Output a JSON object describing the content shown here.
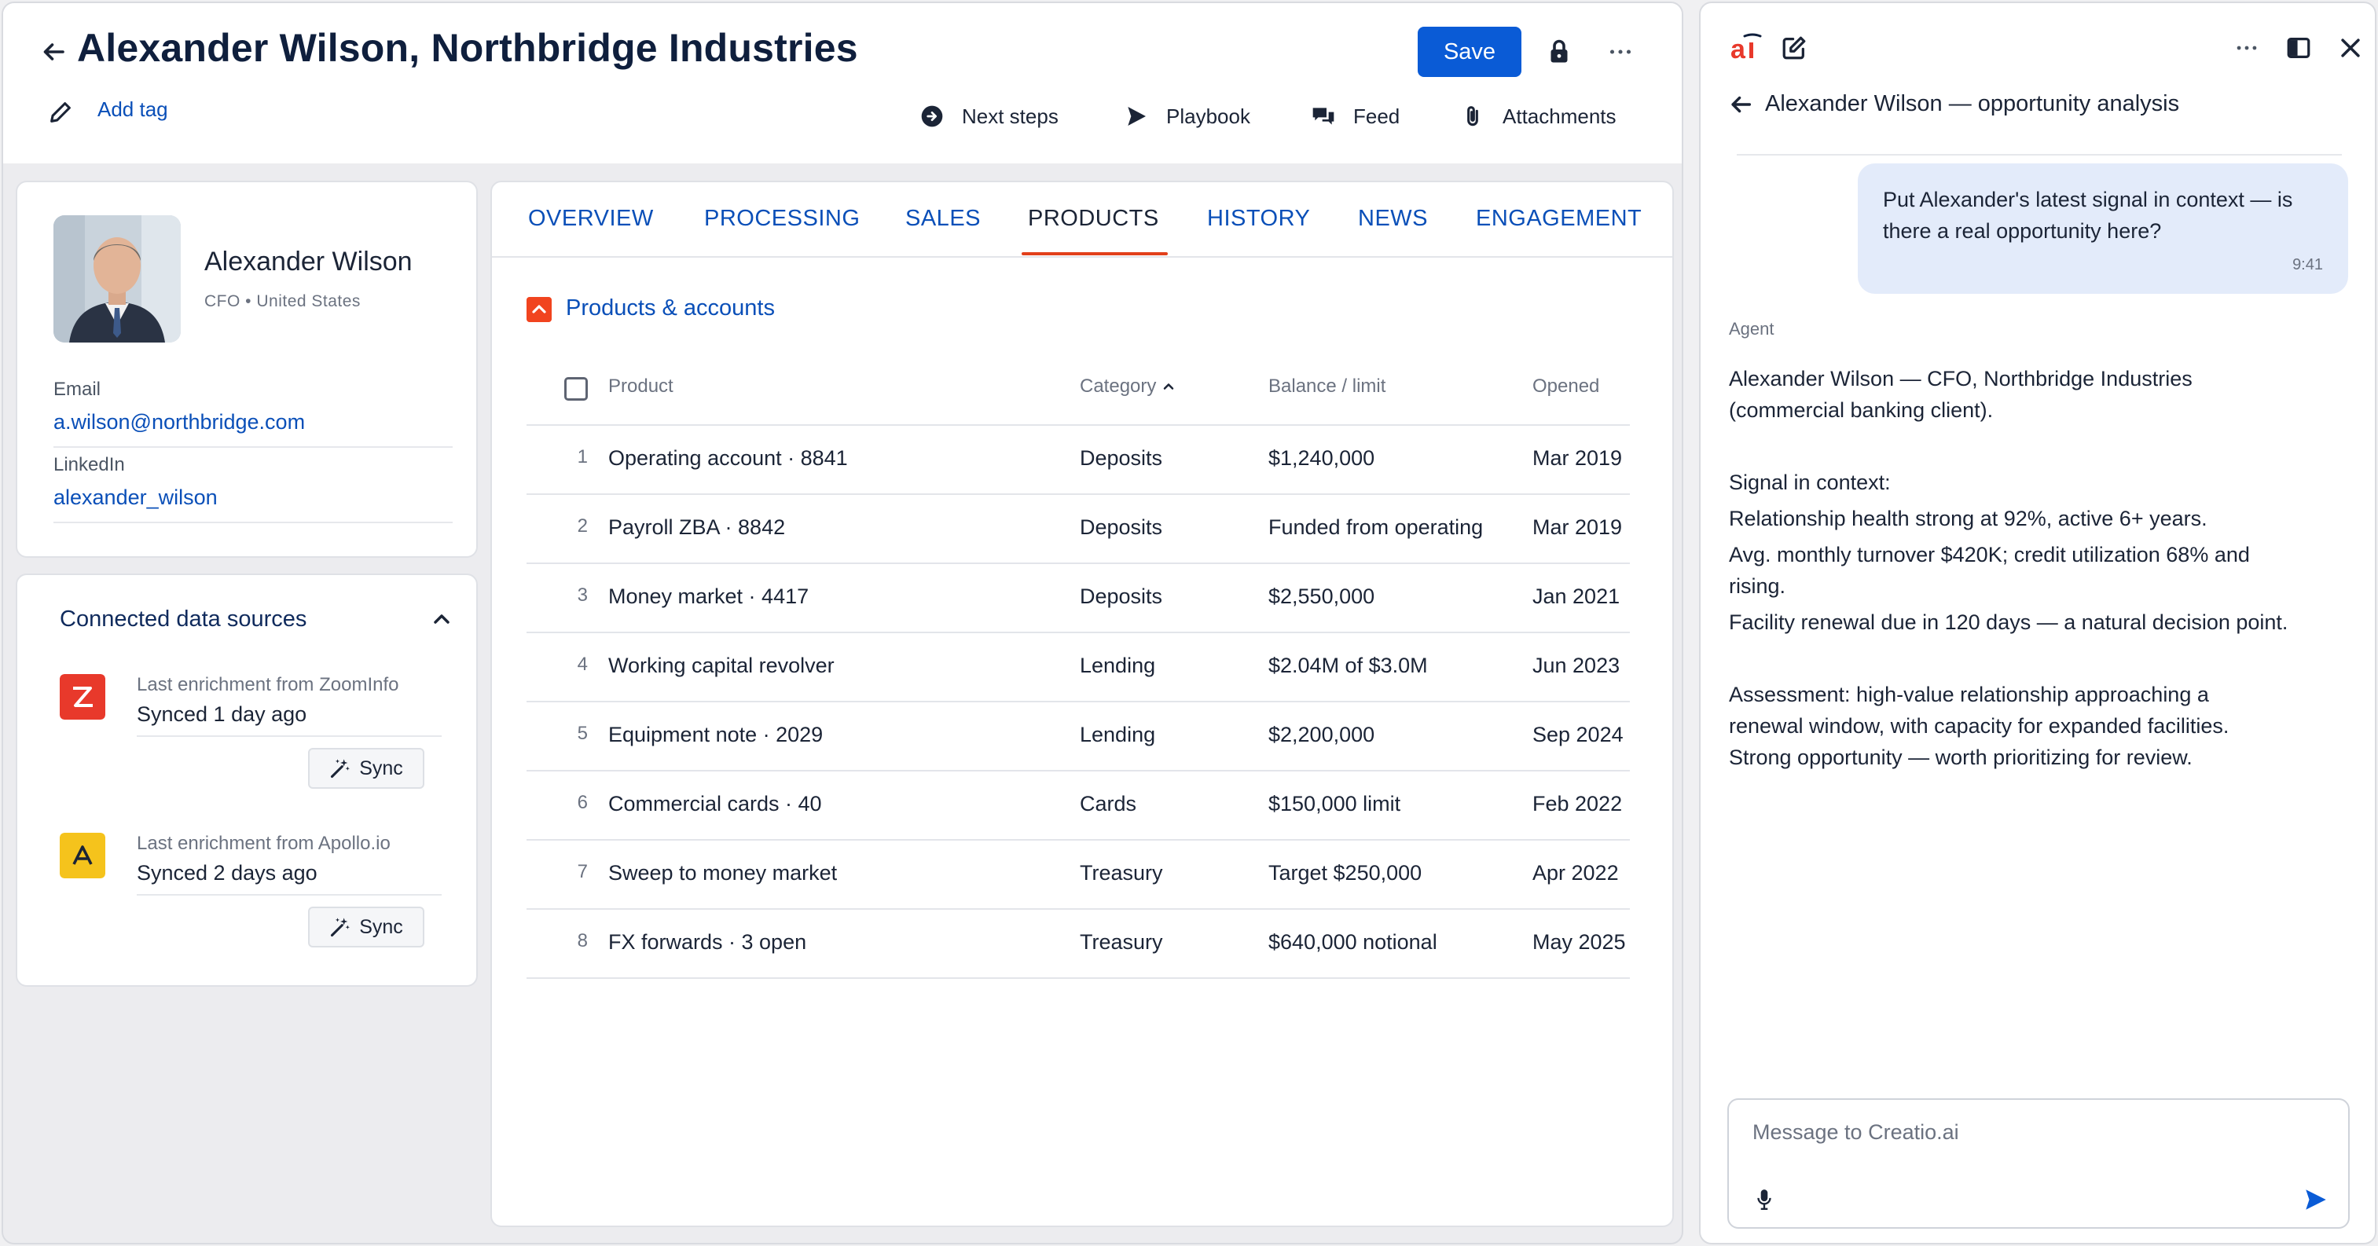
{
  "header": {
    "title": "Alexander Wilson, Northbridge Industries",
    "save_label": "Save",
    "add_tag_label": "Add tag",
    "actions": [
      {
        "label": "Next steps",
        "icon": "arrow-circle-icon"
      },
      {
        "label": "Playbook",
        "icon": "send-icon"
      },
      {
        "label": "Feed",
        "icon": "chat-bubbles-icon"
      },
      {
        "label": "Attachments",
        "icon": "paperclip-icon"
      }
    ]
  },
  "profile": {
    "name": "Alexander Wilson",
    "role": "CFO • United States",
    "email_label": "Email",
    "email": "a.wilson@northbridge.com",
    "linkedin_label": "LinkedIn",
    "linkedin": "alexander_wilson"
  },
  "data_sources": {
    "title": "Connected data sources",
    "items": [
      {
        "label": "Last enrichment from ZoomInfo",
        "synced": "Synced 1 day ago",
        "sync_label": "Sync",
        "color": "#e8392b"
      },
      {
        "label": "Last enrichment from Apollo.io",
        "synced": "Synced 2 days ago",
        "sync_label": "Sync",
        "color": "#f5c31c"
      }
    ]
  },
  "tabs": [
    "OVERVIEW",
    "PROCESSING",
    "SALES",
    "PRODUCTS",
    "HISTORY",
    "NEWS",
    "ENGAGEMENT"
  ],
  "active_tab": "PRODUCTS",
  "products": {
    "section_title": "Products & accounts",
    "columns": {
      "product": "Product",
      "category": "Category",
      "balance": "Balance / limit",
      "opened": "Opened"
    },
    "rows": [
      {
        "idx": "1",
        "product": "Operating account · 8841",
        "category": "Deposits",
        "balance": "$1,240,000",
        "opened": "Mar 2019"
      },
      {
        "idx": "2",
        "product": "Payroll ZBA · 8842",
        "category": "Deposits",
        "balance": "Funded from operating",
        "opened": "Mar 2019"
      },
      {
        "idx": "3",
        "product": "Money market · 4417",
        "category": "Deposits",
        "balance": "$2,550,000",
        "opened": "Jan 2021"
      },
      {
        "idx": "4",
        "product": "Working capital revolver",
        "category": "Lending",
        "balance": "$2.04M of $3.0M",
        "opened": "Jun 2023"
      },
      {
        "idx": "5",
        "product": "Equipment note · 2029",
        "category": "Lending",
        "balance": "$2,200,000",
        "opened": "Sep 2024"
      },
      {
        "idx": "6",
        "product": "Commercial cards · 40",
        "category": "Cards",
        "balance": "$150,000 limit",
        "opened": "Feb 2022"
      },
      {
        "idx": "7",
        "product": "Sweep to money market",
        "category": "Treasury",
        "balance": "Target $250,000",
        "opened": "Apr 2022"
      },
      {
        "idx": "8",
        "product": "FX forwards · 3 open",
        "category": "Treasury",
        "balance": "$640,000 notional",
        "opened": "May 2025"
      }
    ]
  },
  "assistant": {
    "logo_text": "ai",
    "title": "Alexander Wilson — opportunity analysis",
    "user_message": "Put Alexander's latest signal in context — is there a real opportunity here?",
    "user_time": "9:41",
    "agent_label": "Agent",
    "agent_lines": [
      "Alexander Wilson — CFO, Northbridge Industries",
      "(commercial banking client).",
      "Signal in context:",
      "Relationship health strong at 92%, active 6+ years.",
      "Avg. monthly turnover $420K; credit utilization 68% and",
      "rising.",
      "Facility renewal due in 120 days — a natural decision point.",
      "Assessment: high-value relationship approaching a",
      "renewal window, with capacity for expanded facilities.",
      "Strong opportunity — worth prioritizing for review."
    ],
    "input_placeholder": "Message to Creatio.ai"
  },
  "colors": {
    "brand_blue": "#0a5bd6",
    "accent_red": "#e2401b",
    "bubble": "#e3ebfa"
  }
}
